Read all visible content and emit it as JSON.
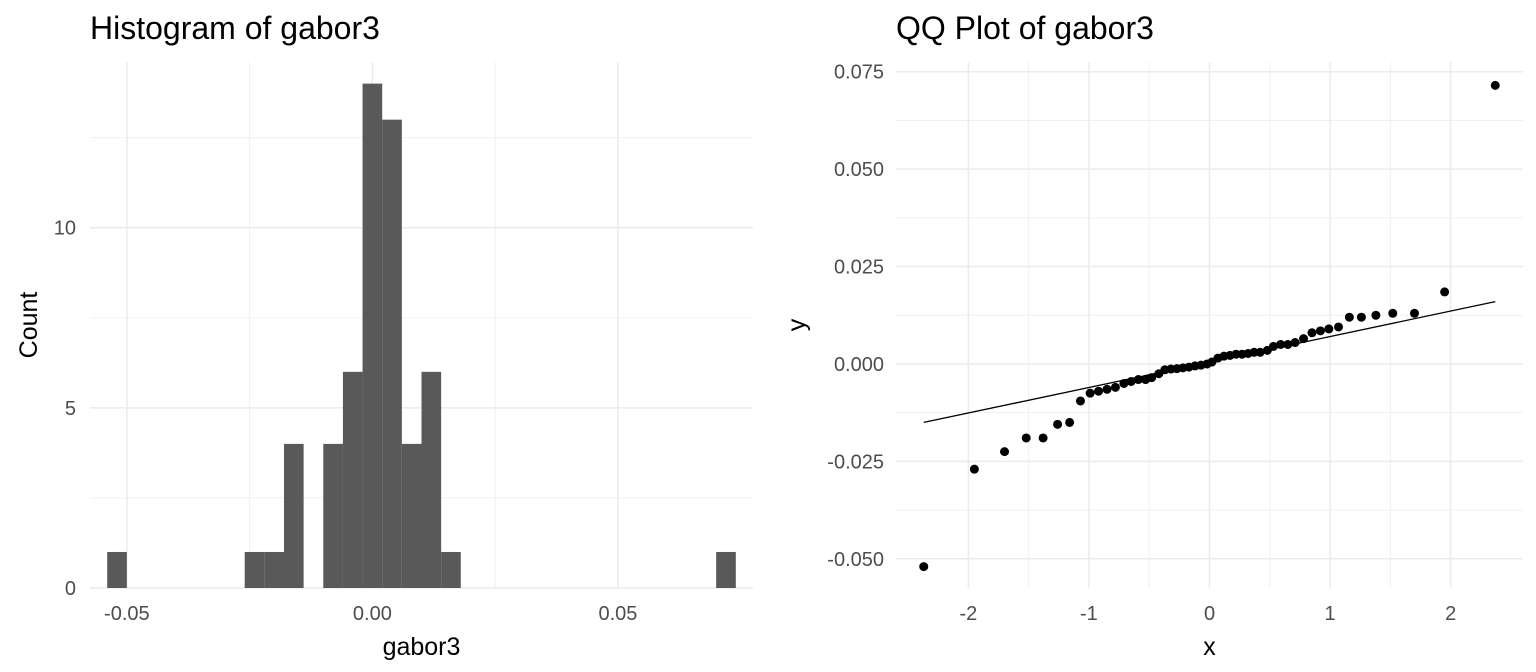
{
  "chart_data": [
    {
      "type": "bar",
      "title": "Histogram of gabor3",
      "xlabel": "gabor3",
      "ylabel": "Count",
      "xlim": [
        -0.0575,
        0.0775
      ],
      "ylim": [
        0,
        14.6
      ],
      "grid": true,
      "bin_width": 0.004,
      "xticks": [
        -0.05,
        0.0,
        0.05
      ],
      "xtick_labels": [
        "-0.05",
        "0.00",
        "0.05"
      ],
      "yticks": [
        0,
        5,
        10
      ],
      "ytick_labels": [
        "0",
        "5",
        "10"
      ],
      "bars": [
        {
          "x": -0.052,
          "count": 1
        },
        {
          "x": -0.024,
          "count": 1
        },
        {
          "x": -0.02,
          "count": 1
        },
        {
          "x": -0.016,
          "count": 4
        },
        {
          "x": -0.008,
          "count": 4
        },
        {
          "x": -0.004,
          "count": 6
        },
        {
          "x": 0.0,
          "count": 14
        },
        {
          "x": 0.004,
          "count": 13
        },
        {
          "x": 0.008,
          "count": 4
        },
        {
          "x": 0.012,
          "count": 6
        },
        {
          "x": 0.016,
          "count": 1
        },
        {
          "x": 0.072,
          "count": 1
        }
      ]
    },
    {
      "type": "scatter",
      "title": "QQ Plot of gabor3",
      "xlabel": "x",
      "ylabel": "y",
      "xlim": [
        -2.6,
        2.6
      ],
      "ylim": [
        -0.0575,
        0.0775
      ],
      "grid": true,
      "xticks": [
        -2,
        -1,
        0,
        1,
        2
      ],
      "xtick_labels": [
        "-2",
        "-1",
        "0",
        "1",
        "2"
      ],
      "yticks": [
        -0.05,
        -0.025,
        0.0,
        0.025,
        0.05,
        0.075
      ],
      "ytick_labels": [
        "-0.050",
        "-0.025",
        "0.000",
        "0.025",
        "0.050",
        "0.075"
      ],
      "points": [
        [
          -2.37,
          -0.052
        ],
        [
          -1.95,
          -0.027
        ],
        [
          -1.7,
          -0.0225
        ],
        [
          -1.52,
          -0.019
        ],
        [
          -1.38,
          -0.019
        ],
        [
          -1.26,
          -0.0155
        ],
        [
          -1.16,
          -0.015
        ],
        [
          -1.07,
          -0.0095
        ],
        [
          -0.99,
          -0.0075
        ],
        [
          -0.92,
          -0.007
        ],
        [
          -0.85,
          -0.0065
        ],
        [
          -0.78,
          -0.006
        ],
        [
          -0.71,
          -0.005
        ],
        [
          -0.65,
          -0.0045
        ],
        [
          -0.59,
          -0.004
        ],
        [
          -0.53,
          -0.004
        ],
        [
          -0.48,
          -0.0035
        ],
        [
          -0.42,
          -0.0025
        ],
        [
          -0.37,
          -0.0015
        ],
        [
          -0.32,
          -0.0013
        ],
        [
          -0.27,
          -0.0012
        ],
        [
          -0.22,
          -0.001
        ],
        [
          -0.17,
          -0.0008
        ],
        [
          -0.12,
          -0.0005
        ],
        [
          -0.07,
          -0.0003
        ],
        [
          -0.02,
          0.0
        ],
        [
          0.02,
          0.0005
        ],
        [
          0.07,
          0.0015
        ],
        [
          0.12,
          0.002
        ],
        [
          0.17,
          0.0022
        ],
        [
          0.22,
          0.0025
        ],
        [
          0.27,
          0.0025
        ],
        [
          0.32,
          0.0027
        ],
        [
          0.37,
          0.003
        ],
        [
          0.42,
          0.003
        ],
        [
          0.48,
          0.0035
        ],
        [
          0.53,
          0.0045
        ],
        [
          0.59,
          0.005
        ],
        [
          0.65,
          0.005
        ],
        [
          0.71,
          0.0055
        ],
        [
          0.78,
          0.0065
        ],
        [
          0.85,
          0.008
        ],
        [
          0.92,
          0.0085
        ],
        [
          0.99,
          0.009
        ],
        [
          1.07,
          0.0095
        ],
        [
          1.16,
          0.012
        ],
        [
          1.26,
          0.012
        ],
        [
          1.38,
          0.0125
        ],
        [
          1.52,
          0.013
        ],
        [
          1.7,
          0.013
        ],
        [
          1.95,
          0.0185
        ],
        [
          2.37,
          0.0715
        ]
      ],
      "reference_line": {
        "x": [
          -2.37,
          2.37
        ],
        "y": [
          -0.015,
          0.016
        ]
      }
    }
  ]
}
